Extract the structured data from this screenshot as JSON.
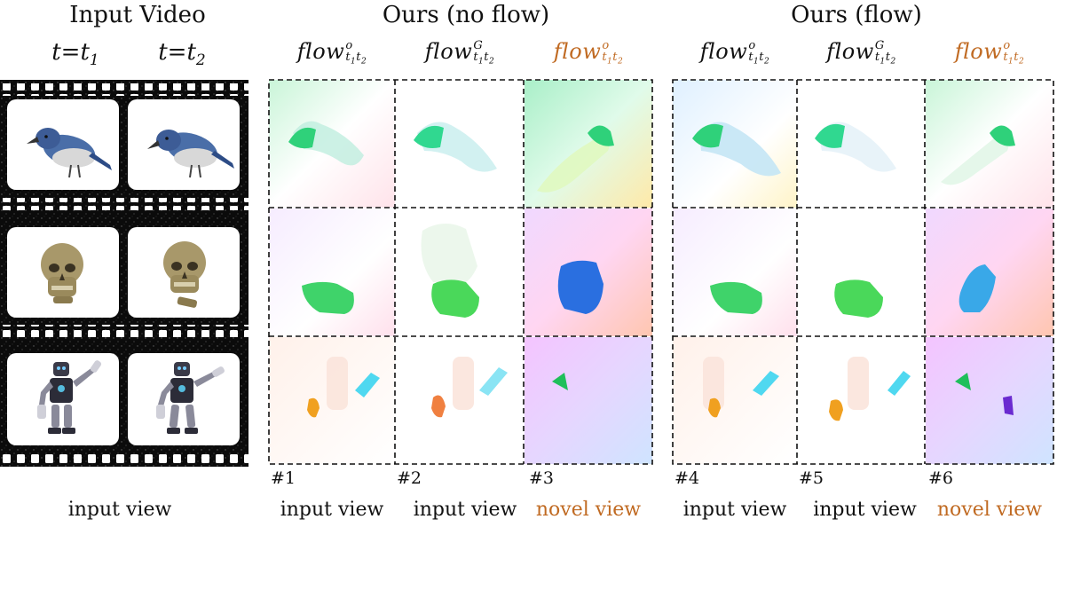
{
  "headers": {
    "input_video": "Input Video",
    "no_flow": "Ours (no flow)",
    "flow": "Ours (flow)"
  },
  "time_labels": {
    "t1": {
      "base": "t=t",
      "sub": "1"
    },
    "t2": {
      "base": "t=t",
      "sub": "2"
    }
  },
  "flow_labels": [
    {
      "base": "flow",
      "sup": "o",
      "sub_t": "t",
      "sub1": "1",
      "sub2": "2",
      "novel": false
    },
    {
      "base": "flow",
      "sup": "G",
      "sub_t": "t",
      "sub1": "1",
      "sub2": "2",
      "novel": false
    },
    {
      "base": "flow",
      "sup": "o",
      "sub_t": "t",
      "sub1": "1",
      "sub2": "2",
      "novel": true
    },
    {
      "base": "flow",
      "sup": "o",
      "sub_t": "t",
      "sub1": "1",
      "sub2": "2",
      "novel": false
    },
    {
      "base": "flow",
      "sup": "G",
      "sub_t": "t",
      "sub1": "1",
      "sub2": "2",
      "novel": false
    },
    {
      "base": "flow",
      "sup": "o",
      "sub_t": "t",
      "sub1": "1",
      "sub2": "2",
      "novel": true
    }
  ],
  "column_numbers": [
    "#1",
    "#2",
    "#3",
    "#4",
    "#5",
    "#6"
  ],
  "captions": {
    "input_video": "input view",
    "cols": [
      "input view",
      "input view",
      "novel view",
      "input view",
      "input view",
      "novel view"
    ]
  },
  "rows": [
    "bird",
    "skull",
    "robot"
  ],
  "colors": {
    "novel": "#c06a22",
    "film": "#0b0b0b",
    "flow_green": "#2fd17a",
    "flow_cyan": "#4fd8f0",
    "flow_blue": "#2a6fe0",
    "flow_orange": "#f0a020",
    "flow_purple": "#6a2ad0"
  }
}
